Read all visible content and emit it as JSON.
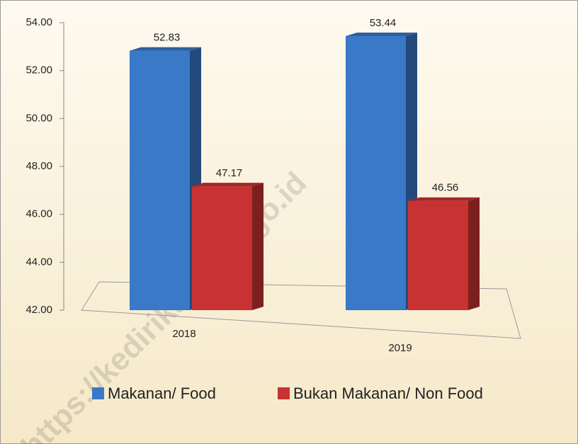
{
  "chart_data": {
    "type": "bar",
    "categories": [
      "2018",
      "2019"
    ],
    "series": [
      {
        "name": "Makanan/ Food",
        "color": "#3a78c8",
        "values": [
          52.83,
          53.44
        ]
      },
      {
        "name": "Bukan Makanan/ Non Food",
        "color": "#c83232",
        "values": [
          47.17,
          46.56
        ]
      }
    ],
    "ylim": [
      42,
      54
    ],
    "yticks": [
      {
        "value": 42,
        "label": "42.00"
      },
      {
        "value": 44,
        "label": "44.00"
      },
      {
        "value": 46,
        "label": "46.00"
      },
      {
        "value": 48,
        "label": "48.00"
      },
      {
        "value": 50,
        "label": "50.00"
      },
      {
        "value": 52,
        "label": "52.00"
      },
      {
        "value": 54,
        "label": "54.00"
      }
    ],
    "legend": "bottom",
    "watermark": "https://kedirikab.bps.go.id"
  }
}
